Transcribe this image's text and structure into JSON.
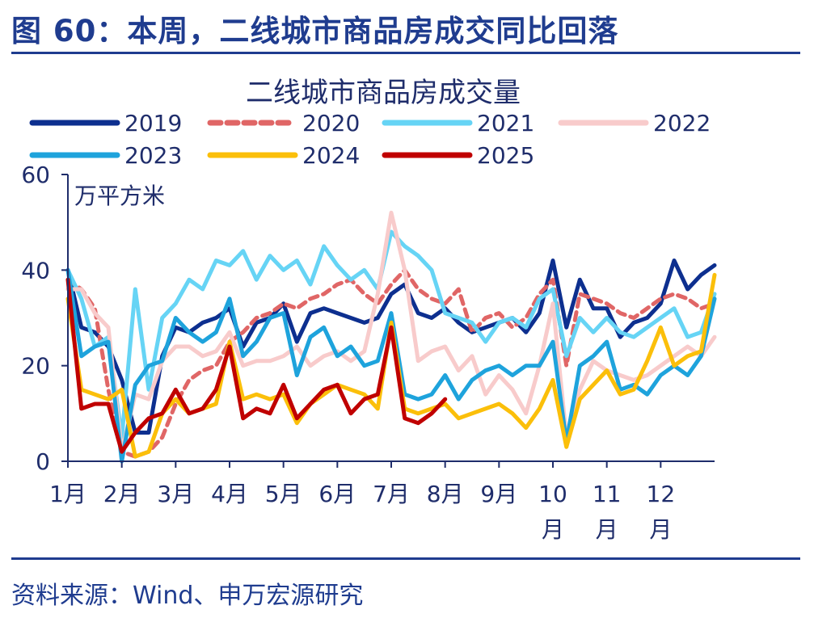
{
  "figure_title": "图 60：本周，二线城市商品房成交同比回落",
  "source": "资料来源：Wind、申万宏源研究",
  "chart_data": {
    "type": "line",
    "title": "二线城市商品房成交量",
    "unit_label": "万平方米",
    "ylim": [
      0,
      60
    ],
    "yticks": [
      0,
      20,
      40,
      60
    ],
    "x_range": [
      1,
      13
    ],
    "xtick_positions": [
      1,
      2,
      3,
      4,
      5,
      6,
      7,
      8,
      9,
      10,
      11,
      12
    ],
    "month_labels": [
      [
        "1月"
      ],
      [
        "2月"
      ],
      [
        "3月"
      ],
      [
        "4月"
      ],
      [
        "5月"
      ],
      [
        "6月"
      ],
      [
        "7月"
      ],
      [
        "8月"
      ],
      [
        "9月"
      ],
      [
        "10",
        "月"
      ],
      [
        "11",
        "月"
      ],
      [
        "12",
        "月"
      ]
    ],
    "legend_position": "top",
    "series": [
      {
        "name": "2019",
        "color": "#0d2f8f",
        "dash": "",
        "x": [
          1.0,
          1.25,
          1.5,
          1.75,
          2.0,
          2.25,
          2.5,
          2.75,
          3.0,
          3.25,
          3.5,
          3.75,
          4.0,
          4.25,
          4.5,
          4.75,
          5.0,
          5.25,
          5.5,
          5.75,
          6.0,
          6.25,
          6.5,
          6.75,
          7.0,
          7.25,
          7.5,
          7.75,
          8.0,
          8.25,
          8.5,
          8.75,
          9.0,
          9.25,
          9.5,
          9.75,
          10.0,
          10.25,
          10.5,
          10.75,
          11.0,
          11.25,
          11.5,
          11.75,
          12.0,
          12.25,
          12.5,
          12.75,
          13.0
        ],
        "values": [
          40,
          28,
          27,
          24,
          17,
          6,
          6,
          22,
          28,
          27,
          29,
          30,
          32,
          24,
          29,
          30,
          33,
          25,
          31,
          32,
          31,
          30,
          29,
          30,
          35,
          37,
          31,
          30,
          32,
          29,
          27,
          28,
          29,
          30,
          27,
          31,
          42,
          28,
          38,
          32,
          32,
          26,
          29,
          30,
          33,
          42,
          36,
          39,
          41
        ]
      },
      {
        "name": "2020",
        "color": "#e06666",
        "dash": "10 7",
        "x": [
          1.0,
          1.25,
          1.5,
          1.75,
          2.0,
          2.25,
          2.5,
          2.75,
          3.0,
          3.25,
          3.5,
          3.75,
          4.0,
          4.25,
          4.5,
          4.75,
          5.0,
          5.25,
          5.5,
          5.75,
          6.0,
          6.25,
          6.5,
          6.75,
          7.0,
          7.25,
          7.5,
          7.75,
          8.0,
          8.25,
          8.5,
          8.75,
          9.0,
          9.25,
          9.5,
          9.75,
          10.0,
          10.25,
          10.5,
          10.75,
          11.0,
          11.25,
          11.5,
          11.75,
          12.0,
          12.25,
          12.5,
          12.75,
          13.0
        ],
        "values": [
          38,
          36,
          32,
          15,
          2,
          1,
          2,
          5,
          12,
          17,
          19,
          20,
          25,
          27,
          30,
          31,
          33,
          32,
          34,
          35,
          37,
          38,
          35,
          33,
          37,
          40,
          36,
          34,
          33,
          36,
          27,
          30,
          31,
          28,
          30,
          35,
          38,
          20,
          35,
          34,
          33,
          31,
          30,
          32,
          34,
          35,
          34,
          32,
          33
        ]
      },
      {
        "name": "2021",
        "color": "#66d4f5",
        "dash": "",
        "x": [
          1.0,
          1.25,
          1.5,
          1.75,
          2.0,
          2.25,
          2.5,
          2.75,
          3.0,
          3.25,
          3.5,
          3.75,
          4.0,
          4.25,
          4.5,
          4.75,
          5.0,
          5.25,
          5.5,
          5.75,
          6.0,
          6.25,
          6.5,
          6.75,
          7.0,
          7.25,
          7.5,
          7.75,
          8.0,
          8.25,
          8.5,
          8.75,
          9.0,
          9.25,
          9.5,
          9.75,
          10.0,
          10.25,
          10.5,
          10.75,
          11.0,
          11.25,
          11.5,
          11.75,
          12.0,
          12.25,
          12.5,
          12.75,
          13.0
        ],
        "values": [
          40,
          34,
          24,
          26,
          5,
          36,
          15,
          30,
          33,
          38,
          36,
          42,
          41,
          44,
          38,
          43,
          40,
          42,
          37,
          45,
          41,
          38,
          40,
          36,
          48,
          45,
          43,
          40,
          31,
          30,
          29,
          25,
          29,
          30,
          28,
          34,
          36,
          22,
          30,
          27,
          30,
          27,
          26,
          28,
          30,
          32,
          26,
          27,
          35
        ]
      },
      {
        "name": "2022",
        "color": "#f8cbcb",
        "dash": "",
        "x": [
          1.0,
          1.25,
          1.5,
          1.75,
          2.0,
          2.25,
          2.5,
          2.75,
          3.0,
          3.25,
          3.5,
          3.75,
          4.0,
          4.25,
          4.5,
          4.75,
          5.0,
          5.25,
          5.5,
          5.75,
          6.0,
          6.25,
          6.5,
          6.75,
          7.0,
          7.25,
          7.5,
          7.75,
          8.0,
          8.25,
          8.5,
          8.75,
          9.0,
          9.25,
          9.5,
          9.75,
          10.0,
          10.25,
          10.5,
          10.75,
          11.0,
          11.25,
          11.5,
          11.75,
          12.0,
          12.25,
          12.5,
          12.75,
          13.0
        ],
        "values": [
          36,
          36,
          31,
          28,
          2,
          14,
          13,
          21,
          24,
          24,
          22,
          23,
          27,
          20,
          21,
          21,
          22,
          24,
          20,
          22,
          23,
          21,
          23,
          35,
          52,
          40,
          21,
          23,
          24,
          19,
          22,
          14,
          18,
          15,
          10,
          20,
          33,
          5,
          15,
          21,
          19,
          18,
          17,
          18,
          20,
          22,
          24,
          22,
          26
        ]
      },
      {
        "name": "2023",
        "color": "#1ea3dc",
        "dash": "",
        "x": [
          1.0,
          1.25,
          1.5,
          1.75,
          2.0,
          2.25,
          2.5,
          2.75,
          3.0,
          3.25,
          3.5,
          3.75,
          4.0,
          4.25,
          4.5,
          4.75,
          5.0,
          5.25,
          5.5,
          5.75,
          6.0,
          6.25,
          6.5,
          6.75,
          7.0,
          7.25,
          7.5,
          7.75,
          8.0,
          8.25,
          8.5,
          8.75,
          9.0,
          9.25,
          9.5,
          9.75,
          10.0,
          10.25,
          10.5,
          10.75,
          11.0,
          11.25,
          11.5,
          11.75,
          12.0,
          12.25,
          12.5,
          12.75,
          13.0
        ],
        "values": [
          40,
          22,
          24,
          25,
          0,
          16,
          20,
          21,
          30,
          27,
          25,
          27,
          34,
          22,
          25,
          30,
          31,
          18,
          26,
          28,
          22,
          24,
          20,
          21,
          31,
          14,
          13,
          14,
          18,
          13,
          17,
          19,
          20,
          18,
          20,
          20,
          25,
          4,
          20,
          22,
          25,
          15,
          16,
          14,
          18,
          20,
          18,
          22,
          34
        ]
      },
      {
        "name": "2024",
        "color": "#fbbf0a",
        "dash": "",
        "x": [
          1.0,
          1.25,
          1.5,
          1.75,
          2.0,
          2.25,
          2.5,
          2.75,
          3.0,
          3.25,
          3.5,
          3.75,
          4.0,
          4.25,
          4.5,
          4.75,
          5.0,
          5.25,
          5.5,
          5.75,
          6.0,
          6.25,
          6.5,
          6.75,
          7.0,
          7.25,
          7.5,
          7.75,
          8.0,
          8.25,
          8.5,
          8.75,
          9.0,
          9.25,
          9.5,
          9.75,
          10.0,
          10.25,
          10.5,
          10.75,
          11.0,
          11.25,
          11.5,
          11.75,
          12.0,
          12.25,
          12.5,
          12.75,
          13.0
        ],
        "values": [
          34,
          15,
          14,
          13,
          15,
          1,
          2,
          10,
          13,
          10,
          11,
          12,
          25,
          13,
          14,
          13,
          14,
          8,
          12,
          14,
          16,
          15,
          14,
          11,
          29,
          11,
          10,
          11,
          12,
          9,
          10,
          11,
          12,
          10,
          7,
          11,
          17,
          3,
          13,
          16,
          19,
          14,
          15,
          21,
          28,
          20,
          22,
          23,
          39
        ]
      },
      {
        "name": "2025",
        "color": "#c00000",
        "dash": "",
        "x": [
          1.0,
          1.25,
          1.5,
          1.75,
          2.0,
          2.25,
          2.5,
          2.75,
          3.0,
          3.25,
          3.5,
          3.75,
          4.0,
          4.25,
          4.5,
          4.75,
          5.0,
          5.25,
          5.5,
          5.75,
          6.0,
          6.25,
          6.5,
          6.75,
          7.0,
          7.25,
          7.5,
          7.75,
          8.0
        ],
        "values": [
          38,
          11,
          12,
          12,
          2,
          6,
          9,
          10,
          15,
          10,
          11,
          15,
          24,
          9,
          11,
          10,
          16,
          9,
          12,
          15,
          16,
          10,
          13,
          14,
          28,
          9,
          8,
          10,
          13
        ]
      }
    ]
  }
}
